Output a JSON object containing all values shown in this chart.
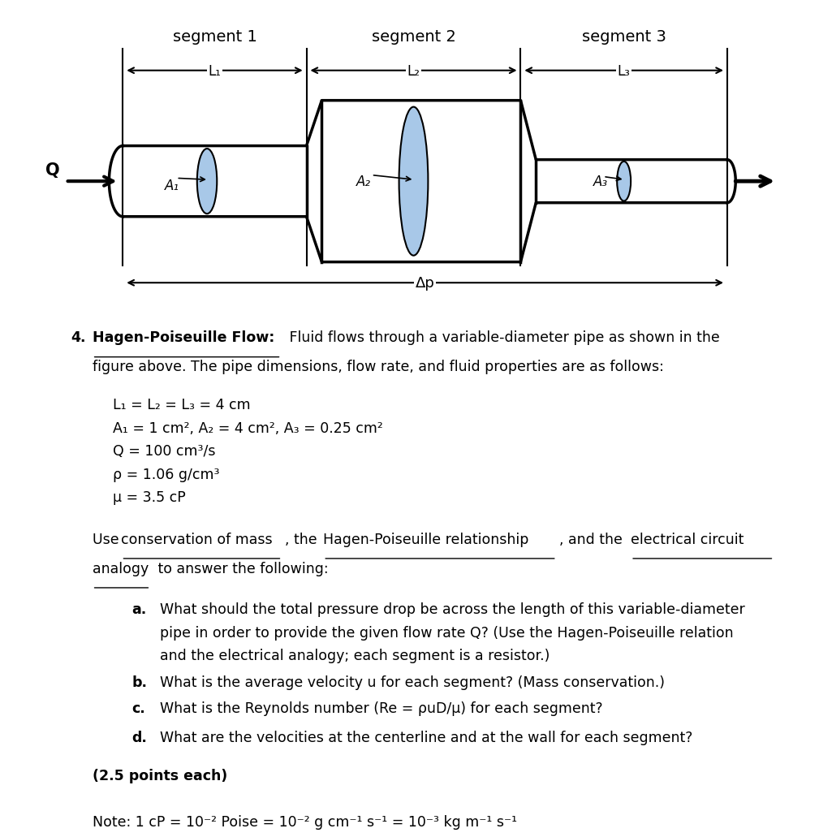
{
  "bg_color": "#ffffff",
  "segment_labels": [
    "segment 1",
    "segment 2",
    "segment 3"
  ],
  "L_labels": [
    "L₁",
    "L₂",
    "L₃"
  ],
  "A_labels": [
    "A₁",
    "A₂",
    "A₃"
  ],
  "pipe_color": "#000000",
  "ellipse_color": "#a8c8e8",
  "text_color": "#000000",
  "delta_p_label": "Δp",
  "Q_label": "Q",
  "params_line1": "L₁ = L₂ = L₃ = 4 cm",
  "params_line2": "A₁ = 1 cm², A₂ = 4 cm², A₃ = 0.25 cm²",
  "params_line3": "Q = 100 cm³/s",
  "params_line4": "ρ = 1.06 g/cm³",
  "params_line5": "μ = 3.5 cP",
  "note_text": "Note: 1 cP = 10⁻² Poise = 10⁻² g cm⁻¹ s⁻¹ = 10⁻³ kg m⁻¹ s⁻¹"
}
